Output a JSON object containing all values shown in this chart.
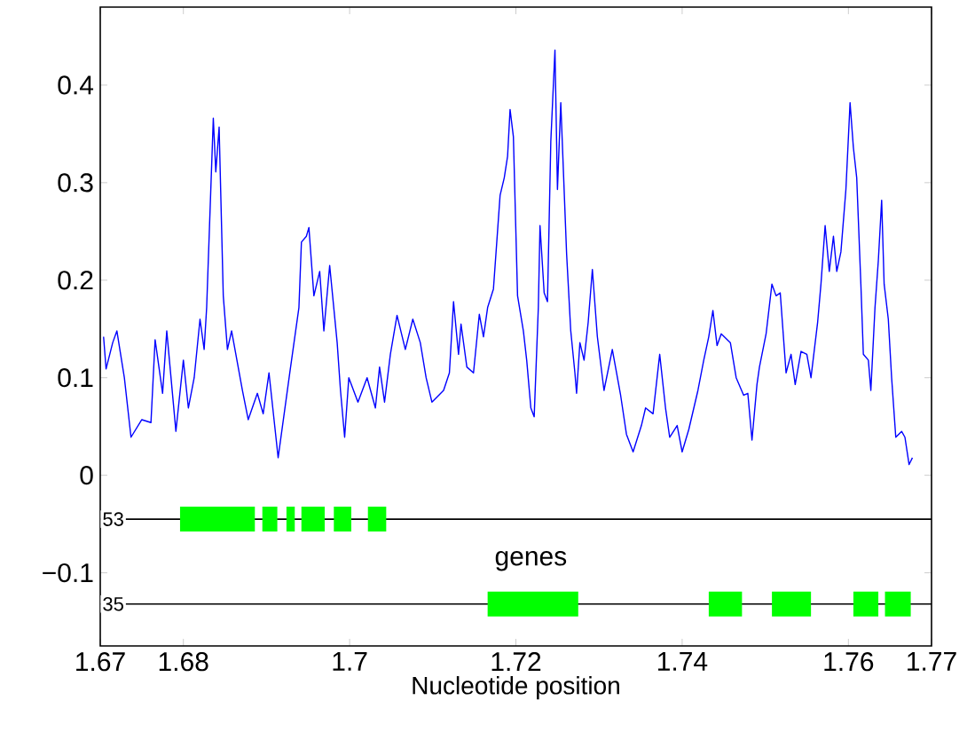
{
  "chart_data": {
    "type": "line",
    "xlabel": "Nucleotide position",
    "xlim": [
      1.67,
      1.77
    ],
    "ylim": [
      -0.175,
      0.48
    ],
    "xticks": [
      1.67,
      1.68,
      1.7,
      1.72,
      1.74,
      1.76,
      1.77
    ],
    "yticks": [
      {
        "value": -0.1,
        "label": "−0.1"
      },
      0,
      0.1,
      0.2,
      0.3,
      0.4
    ],
    "ref_lines": [
      {
        "axis": "y",
        "value": -0.045,
        "color": "#000000"
      },
      {
        "axis": "y",
        "value": -0.132,
        "color": "#000000"
      }
    ],
    "annotations": [
      {
        "text": "53",
        "x": 1.67,
        "y": -0.045
      },
      {
        "text": "35",
        "x": 1.67,
        "y": -0.132
      },
      "genes"
    ],
    "series": [
      {
        "color": "#0000ff",
        "x": [
          1.6704,
          1.6707,
          1.6715,
          1.672,
          1.6729,
          1.6737,
          1.675,
          1.6761,
          1.6766,
          1.6775,
          1.678,
          1.6791,
          1.68,
          1.6806,
          1.6813,
          1.682,
          1.6825,
          1.6828,
          1.6836,
          1.6839,
          1.6843,
          1.6848,
          1.6853,
          1.6858,
          1.6871,
          1.6878,
          1.6889,
          1.6896,
          1.6903,
          1.6914,
          1.6928,
          1.6939,
          1.6942,
          1.6948,
          1.6951,
          1.6957,
          1.6964,
          1.6969,
          1.6976,
          1.6985,
          1.6989,
          1.6994,
          1.6999,
          1.701,
          1.7021,
          1.7031,
          1.7036,
          1.7042,
          1.7049,
          1.7057,
          1.7067,
          1.7076,
          1.7085,
          1.7092,
          1.7099,
          1.7113,
          1.712,
          1.7125,
          1.7131,
          1.7134,
          1.7141,
          1.7149,
          1.7156,
          1.7161,
          1.7166,
          1.7173,
          1.7181,
          1.7186,
          1.719,
          1.7193,
          1.7197,
          1.7202,
          1.7209,
          1.7213,
          1.7218,
          1.7222,
          1.7227,
          1.7229,
          1.7234,
          1.7238,
          1.7242,
          1.7247,
          1.725,
          1.7254,
          1.7261,
          1.7266,
          1.7271,
          1.7273,
          1.7277,
          1.7282,
          1.7287,
          1.7292,
          1.7298,
          1.7306,
          1.7316,
          1.7326,
          1.7333,
          1.7341,
          1.7351,
          1.7356,
          1.7365,
          1.7373,
          1.738,
          1.7385,
          1.7394,
          1.74,
          1.7408,
          1.7419,
          1.7426,
          1.7432,
          1.7437,
          1.7442,
          1.7447,
          1.7458,
          1.7465,
          1.7474,
          1.7479,
          1.7484,
          1.749,
          1.7493,
          1.7501,
          1.7508,
          1.7513,
          1.7518,
          1.7525,
          1.7531,
          1.7536,
          1.7543,
          1.755,
          1.7555,
          1.7563,
          1.7567,
          1.7572,
          1.7577,
          1.7582,
          1.7586,
          1.7591,
          1.7597,
          1.7602,
          1.7606,
          1.761,
          1.7615,
          1.7618,
          1.7624,
          1.7627,
          1.7632,
          1.7636,
          1.764,
          1.7643,
          1.7648,
          1.7652,
          1.7657,
          1.7664,
          1.7668,
          1.7673,
          1.7677
        ],
        "values": [
          0.142,
          0.109,
          0.136,
          0.148,
          0.1,
          0.039,
          0.057,
          0.054,
          0.139,
          0.084,
          0.148,
          0.045,
          0.118,
          0.069,
          0.1,
          0.16,
          0.129,
          0.172,
          0.366,
          0.311,
          0.357,
          0.184,
          0.129,
          0.148,
          0.087,
          0.057,
          0.084,
          0.063,
          0.105,
          0.018,
          0.105,
          0.172,
          0.239,
          0.245,
          0.254,
          0.184,
          0.209,
          0.148,
          0.215,
          0.136,
          0.087,
          0.039,
          0.1,
          0.075,
          0.1,
          0.069,
          0.111,
          0.075,
          0.124,
          0.164,
          0.129,
          0.16,
          0.136,
          0.1,
          0.075,
          0.087,
          0.105,
          0.178,
          0.124,
          0.155,
          0.111,
          0.105,
          0.165,
          0.142,
          0.172,
          0.191,
          0.287,
          0.305,
          0.327,
          0.375,
          0.347,
          0.184,
          0.148,
          0.118,
          0.069,
          0.06,
          0.172,
          0.256,
          0.187,
          0.178,
          0.342,
          0.436,
          0.293,
          0.382,
          0.227,
          0.148,
          0.105,
          0.084,
          0.136,
          0.118,
          0.157,
          0.211,
          0.142,
          0.087,
          0.129,
          0.082,
          0.042,
          0.024,
          0.051,
          0.069,
          0.063,
          0.124,
          0.069,
          0.039,
          0.051,
          0.024,
          0.047,
          0.087,
          0.118,
          0.142,
          0.169,
          0.133,
          0.145,
          0.136,
          0.1,
          0.082,
          0.084,
          0.036,
          0.093,
          0.111,
          0.145,
          0.196,
          0.184,
          0.187,
          0.105,
          0.124,
          0.093,
          0.127,
          0.124,
          0.1,
          0.157,
          0.196,
          0.256,
          0.209,
          0.245,
          0.209,
          0.229,
          0.293,
          0.382,
          0.336,
          0.305,
          0.196,
          0.124,
          0.118,
          0.087,
          0.172,
          0.22,
          0.282,
          0.196,
          0.16,
          0.1,
          0.039,
          0.045,
          0.039,
          0.011,
          0.018
        ]
      },
      {
        "type": "line",
        "color": "#00ff00",
        "x": [
          1.6796,
          1.6886,
          null,
          1.6895,
          1.6913,
          null,
          1.6924,
          1.6934,
          null,
          1.6942,
          1.697,
          null,
          1.6981,
          1.7002,
          null,
          1.7022,
          1.7044
        ],
        "values": [
          -0.045,
          -0.045,
          null,
          -0.045,
          -0.045,
          null,
          -0.045,
          -0.045,
          null,
          -0.045,
          -0.045,
          null,
          -0.045,
          -0.045,
          null,
          -0.045,
          -0.045
        ]
      },
      {
        "type": "line",
        "color": "#00ff00",
        "x": [
          1.7166,
          1.7275,
          null,
          1.7432,
          1.7472,
          null,
          1.7508,
          1.7555,
          null,
          1.7606,
          1.7636,
          null,
          1.7644,
          1.7675
        ],
        "values": [
          -0.132,
          -0.132,
          null,
          -0.132,
          -0.132,
          null,
          -0.132,
          -0.132,
          null,
          -0.132,
          -0.132,
          null,
          -0.132,
          -0.132
        ]
      }
    ]
  }
}
